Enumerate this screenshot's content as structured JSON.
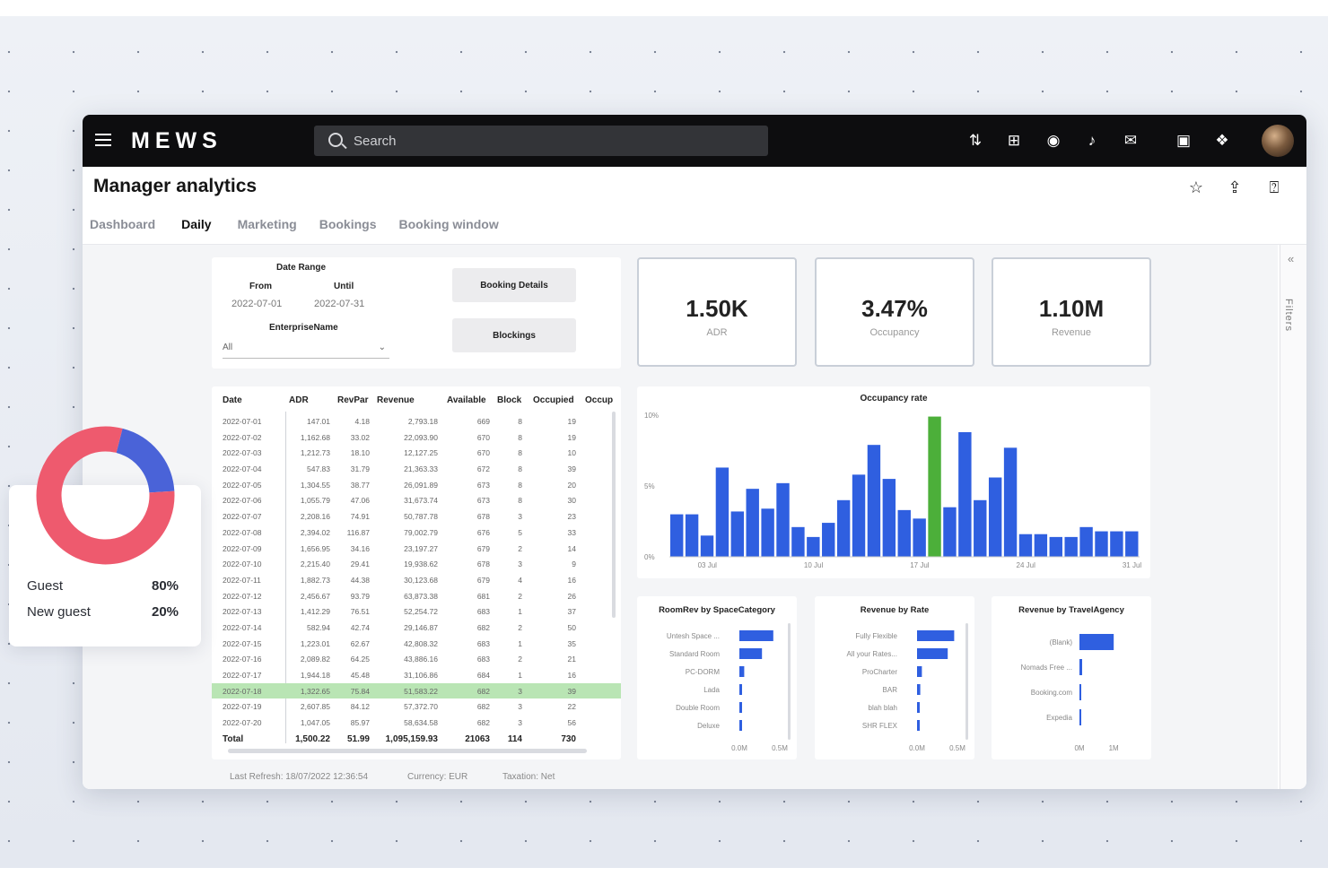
{
  "app": {
    "logo": "MEWS",
    "search_placeholder": "Search",
    "top_icons": [
      "sort-icon",
      "plus-square-icon",
      "eye-icon",
      "bell-icon",
      "mail-icon",
      "chat-icon",
      "gift-icon",
      "avatar"
    ]
  },
  "page": {
    "title": "Manager analytics",
    "actions": [
      "star-icon",
      "share-icon",
      "help-icon"
    ]
  },
  "tabs": [
    {
      "label": "Dashboard",
      "active": false
    },
    {
      "label": "Daily",
      "active": true
    },
    {
      "label": "Marketing",
      "active": false
    },
    {
      "label": "Bookings",
      "active": false
    },
    {
      "label": "Booking window",
      "active": false
    }
  ],
  "filters": {
    "date_range_label": "Date Range",
    "from_label": "From",
    "until_label": "Until",
    "from_value": "2022-07-01",
    "until_value": "2022-07-31",
    "enterprise_label": "EnterpriseName",
    "enterprise_value": "All",
    "btn_booking_details": "Booking Details",
    "btn_blockings": "Blockings",
    "rail_label": "Filters"
  },
  "kpis": [
    {
      "value": "1.50K",
      "label": "ADR"
    },
    {
      "value": "3.47%",
      "label": "Occupancy"
    },
    {
      "value": "1.10M",
      "label": "Revenue"
    }
  ],
  "table": {
    "columns": [
      "Date",
      "ADR",
      "RevPar",
      "Revenue",
      "Available",
      "Block",
      "Occupied",
      "Occup"
    ],
    "rows": [
      [
        "2022-07-01",
        "147.01",
        "4.18",
        "2,793.18",
        "669",
        "8",
        "19"
      ],
      [
        "2022-07-02",
        "1,162.68",
        "33.02",
        "22,093.90",
        "670",
        "8",
        "19"
      ],
      [
        "2022-07-03",
        "1,212.73",
        "18.10",
        "12,127.25",
        "670",
        "8",
        "10"
      ],
      [
        "2022-07-04",
        "547.83",
        "31.79",
        "21,363.33",
        "672",
        "8",
        "39"
      ],
      [
        "2022-07-05",
        "1,304.55",
        "38.77",
        "26,091.89",
        "673",
        "8",
        "20"
      ],
      [
        "2022-07-06",
        "1,055.79",
        "47.06",
        "31,673.74",
        "673",
        "8",
        "30"
      ],
      [
        "2022-07-07",
        "2,208.16",
        "74.91",
        "50,787.78",
        "678",
        "3",
        "23"
      ],
      [
        "2022-07-08",
        "2,394.02",
        "116.87",
        "79,002.79",
        "676",
        "5",
        "33"
      ],
      [
        "2022-07-09",
        "1,656.95",
        "34.16",
        "23,197.27",
        "679",
        "2",
        "14"
      ],
      [
        "2022-07-10",
        "2,215.40",
        "29.41",
        "19,938.62",
        "678",
        "3",
        "9"
      ],
      [
        "2022-07-11",
        "1,882.73",
        "44.38",
        "30,123.68",
        "679",
        "4",
        "16"
      ],
      [
        "2022-07-12",
        "2,456.67",
        "93.79",
        "63,873.38",
        "681",
        "2",
        "26"
      ],
      [
        "2022-07-13",
        "1,412.29",
        "76.51",
        "52,254.72",
        "683",
        "1",
        "37"
      ],
      [
        "2022-07-14",
        "582.94",
        "42.74",
        "29,146.87",
        "682",
        "2",
        "50"
      ],
      [
        "2022-07-15",
        "1,223.01",
        "62.67",
        "42,808.32",
        "683",
        "1",
        "35"
      ],
      [
        "2022-07-16",
        "2,089.82",
        "64.25",
        "43,886.16",
        "683",
        "2",
        "21"
      ],
      [
        "2022-07-17",
        "1,944.18",
        "45.48",
        "31,106.86",
        "684",
        "1",
        "16"
      ],
      [
        "2022-07-18",
        "1,322.65",
        "75.84",
        "51,583.22",
        "682",
        "3",
        "39"
      ],
      [
        "2022-07-19",
        "2,607.85",
        "84.12",
        "57,372.70",
        "682",
        "3",
        "22"
      ],
      [
        "2022-07-20",
        "1,047.05",
        "85.97",
        "58,634.58",
        "682",
        "3",
        "56"
      ]
    ],
    "highlight_row": 17,
    "total": [
      "Total",
      "1,500.22",
      "51.99",
      "1,095,159.93",
      "21063",
      "114",
      "730"
    ]
  },
  "chart_data": [
    {
      "type": "bar",
      "title": "Occupancy rate",
      "x": [
        "2022-07-01",
        "2022-07-02",
        "2022-07-03",
        "2022-07-04",
        "2022-07-05",
        "2022-07-06",
        "2022-07-07",
        "2022-07-08",
        "2022-07-09",
        "2022-07-10",
        "2022-07-11",
        "2022-07-12",
        "2022-07-13",
        "2022-07-14",
        "2022-07-15",
        "2022-07-16",
        "2022-07-17",
        "2022-07-18",
        "2022-07-19",
        "2022-07-20",
        "2022-07-21",
        "2022-07-22",
        "2022-07-23",
        "2022-07-24",
        "2022-07-25",
        "2022-07-26",
        "2022-07-27",
        "2022-07-28",
        "2022-07-29",
        "2022-07-30",
        "2022-07-31"
      ],
      "values": [
        3.0,
        3.0,
        1.5,
        6.3,
        3.2,
        4.8,
        3.4,
        5.2,
        2.1,
        1.4,
        2.4,
        4.0,
        5.8,
        7.9,
        5.5,
        3.3,
        2.7,
        9.9,
        3.5,
        8.8,
        4.0,
        5.6,
        7.7,
        1.6,
        1.6,
        1.4,
        1.4,
        2.1,
        1.8,
        1.8,
        1.8
      ],
      "highlight_index": 17,
      "ylim": [
        0,
        10
      ],
      "yticks": [
        "0%",
        "5%",
        "10%"
      ],
      "xticks": [
        "03 Jul",
        "10 Jul",
        "17 Jul",
        "24 Jul",
        "31 Jul"
      ],
      "colors": {
        "bar": "#2f5fe0",
        "highlight": "#4caf3a"
      }
    },
    {
      "type": "bar",
      "orientation": "horizontal",
      "title": "RoomRev by SpaceCategory",
      "categories": [
        "Untesh Space ...",
        "Standard Room",
        "PC-DORM",
        "Lada",
        "Double Room",
        "Deluxe"
      ],
      "values": [
        0.42,
        0.28,
        0.06,
        0.03,
        0.03,
        0.02
      ],
      "xticks": [
        "0.0M",
        "0.5M"
      ],
      "xlim": [
        0,
        0.8
      ]
    },
    {
      "type": "bar",
      "orientation": "horizontal",
      "title": "Revenue by Rate",
      "categories": [
        "Fully Flexible",
        "All your Rates...",
        "ProCharter",
        "BAR",
        "blah blah",
        "SHR FLEX"
      ],
      "values": [
        0.46,
        0.38,
        0.06,
        0.04,
        0.02,
        0.01
      ],
      "xticks": [
        "0.0M",
        "0.5M"
      ],
      "xlim": [
        0,
        0.8
      ]
    },
    {
      "type": "bar",
      "orientation": "horizontal",
      "title": "Revenue by TravelAgency",
      "categories": [
        "(Blank)",
        "Nomads Free ...",
        "Booking.com",
        "Expedia"
      ],
      "values": [
        1.0,
        0.04,
        0.0,
        0.0
      ],
      "xticks": [
        "0M",
        "1M"
      ],
      "xlim": [
        0,
        1.1
      ]
    },
    {
      "type": "pie",
      "variant": "donut",
      "categories": [
        "Guest",
        "New guest"
      ],
      "values": [
        80,
        20
      ],
      "labels": [
        "80%",
        "20%"
      ],
      "colors": {
        "Guest": "#ee5a6e",
        "New guest": "#4a63d8"
      }
    }
  ],
  "footer": {
    "last_refresh": "Last Refresh: 18/07/2022 12:36:54",
    "currency": "Currency: EUR",
    "taxation": "Taxation: Net"
  }
}
